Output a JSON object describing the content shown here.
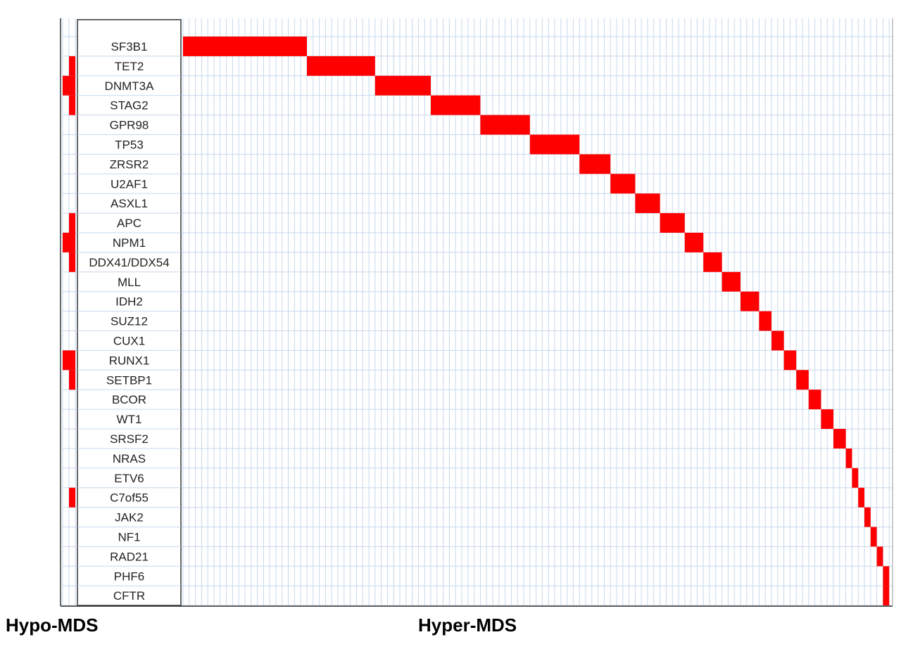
{
  "chart_data": {
    "type": "heatmap",
    "genes": [
      "SF3B1",
      "TET2",
      "DNMT3A",
      "STAG2",
      "GPR98",
      "TP53",
      "ZRSR2",
      "U2AF1",
      "ASXL1",
      "APC",
      "NPM1",
      "DDX41/DDX54",
      "MLL",
      "IDH2",
      "SUZ12",
      "CUX1",
      "RUNX1",
      "SETBP1",
      "BCOR",
      "WT1",
      "SRSF2",
      "NRAS",
      "ETV6",
      "C7of55",
      "JAK2",
      "NF1",
      "RAD21",
      "PHF6",
      "CFTR"
    ],
    "groups": {
      "hypo": {
        "label": "Hypo-MDS",
        "columns": 2,
        "mutations": [
          {
            "gene": "TET2",
            "cols": [
              1
            ]
          },
          {
            "gene": "DNMT3A",
            "cols": [
              0,
              1
            ]
          },
          {
            "gene": "STAG2",
            "cols": [
              1
            ]
          },
          {
            "gene": "APC",
            "cols": [
              1
            ]
          },
          {
            "gene": "NPM1",
            "cols": [
              0,
              1
            ]
          },
          {
            "gene": "DDX41/DDX54",
            "cols": [
              1
            ]
          },
          {
            "gene": "RUNX1",
            "cols": [
              0,
              1
            ]
          },
          {
            "gene": "SETBP1",
            "cols": [
              1
            ]
          },
          {
            "gene": "C7of55",
            "cols": [
              1
            ]
          }
        ]
      },
      "hyper": {
        "label": "Hyper-MDS",
        "columns": 114,
        "mutations": [
          {
            "gene": "SF3B1",
            "start": 0,
            "count": 20
          },
          {
            "gene": "TET2",
            "start": 20,
            "count": 11
          },
          {
            "gene": "DNMT3A",
            "start": 31,
            "count": 9
          },
          {
            "gene": "STAG2",
            "start": 40,
            "count": 8
          },
          {
            "gene": "GPR98",
            "start": 48,
            "count": 8
          },
          {
            "gene": "TP53",
            "start": 56,
            "count": 8
          },
          {
            "gene": "ZRSR2",
            "start": 64,
            "count": 5
          },
          {
            "gene": "U2AF1",
            "start": 69,
            "count": 4
          },
          {
            "gene": "ASXL1",
            "start": 73,
            "count": 4
          },
          {
            "gene": "APC",
            "start": 77,
            "count": 4
          },
          {
            "gene": "NPM1",
            "start": 81,
            "count": 3
          },
          {
            "gene": "DDX41/DDX54",
            "start": 84,
            "count": 3
          },
          {
            "gene": "MLL",
            "start": 87,
            "count": 3
          },
          {
            "gene": "IDH2",
            "start": 90,
            "count": 3
          },
          {
            "gene": "SUZ12",
            "start": 93,
            "count": 2
          },
          {
            "gene": "CUX1",
            "start": 95,
            "count": 2
          },
          {
            "gene": "RUNX1",
            "start": 97,
            "count": 2
          },
          {
            "gene": "SETBP1",
            "start": 99,
            "count": 2
          },
          {
            "gene": "BCOR",
            "start": 101,
            "count": 2
          },
          {
            "gene": "WT1",
            "start": 103,
            "count": 2
          },
          {
            "gene": "SRSF2",
            "start": 105,
            "count": 2
          },
          {
            "gene": "NRAS",
            "start": 107,
            "count": 1
          },
          {
            "gene": "ETV6",
            "start": 108,
            "count": 1
          },
          {
            "gene": "C7of55",
            "start": 109,
            "count": 1
          },
          {
            "gene": "JAK2",
            "start": 110,
            "count": 1
          },
          {
            "gene": "NF1",
            "start": 111,
            "count": 1
          },
          {
            "gene": "RAD21",
            "start": 112,
            "count": 1
          },
          {
            "gene": "PHF6",
            "start": 113,
            "count": 1
          },
          {
            "gene": "CFTR",
            "start": 113,
            "count": 1
          }
        ]
      }
    },
    "colors": {
      "mutated": "#ff0000",
      "grid": "#c6d8ec",
      "frame": "#333333",
      "background": "#ffffff"
    }
  }
}
